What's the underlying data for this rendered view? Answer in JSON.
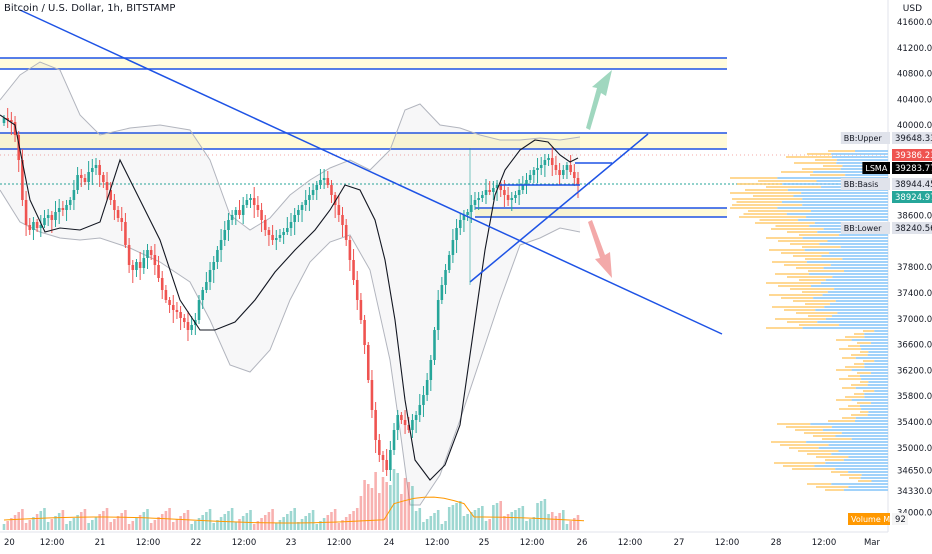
{
  "header": {
    "title": "Bitcoin / U.S. Dollar, 1h, BITSTAMP",
    "currency": "USD"
  },
  "chart_data": {
    "type": "candlestick",
    "symbol": "Bitcoin / U.S. Dollar",
    "interval": "1h",
    "exchange": "BITSTAMP",
    "y_ticks": [
      41600,
      41200,
      40800,
      40400,
      40000,
      39648.33,
      39386.23,
      39283.77,
      38944.45,
      38924.97,
      38600,
      38240.56,
      37800,
      37400,
      37000,
      36600,
      36200,
      35800,
      35400,
      35000,
      34650,
      34330,
      34000
    ],
    "y_tick_labels": [
      "41600.00",
      "41200.00",
      "40800.00",
      "40400.00",
      "40000.00",
      "",
      "",
      "",
      "",
      "",
      "38600.00",
      "",
      "37800.00",
      "37400.00",
      "37000.00",
      "36600.00",
      "36200.00",
      "35800.00",
      "35400.00",
      "35000.00",
      "34650.00",
      "34330.00",
      "34000.00"
    ],
    "x_tick_labels": [
      "20",
      "12:00",
      "21",
      "12:00",
      "22",
      "12:00",
      "23",
      "12:00",
      "24",
      "12:00",
      "25",
      "12:00",
      "26",
      "12:00",
      "27",
      "12:00",
      "28",
      "12:00",
      "Mar"
    ],
    "price_tags": [
      {
        "label": "BB:Upper",
        "value": "39648.33",
        "color": "#e0e3eb",
        "text_color": "#131722"
      },
      {
        "label": "",
        "value": "39386.23",
        "color": "#ef5350",
        "text_color": "#ffffff"
      },
      {
        "label": "LSMA",
        "value": "39283.77",
        "color": "#000000",
        "text_color": "#ffffff"
      },
      {
        "label": "BB:Basis",
        "value": "38944.45",
        "color": "#e0e3eb",
        "text_color": "#131722"
      },
      {
        "label": "",
        "value": "38924.97",
        "color": "#26a69a",
        "text_color": "#ffffff"
      },
      {
        "label": "BB:Lower",
        "value": "38240.56",
        "color": "#e0e3eb",
        "text_color": "#131722"
      }
    ],
    "volume_tag": {
      "label": "Volume MA",
      "value": "92"
    },
    "colors": {
      "up": "#26a69a",
      "down": "#ef5350",
      "trend_line": "#1e53e5",
      "zone_fill": "#fff59d",
      "bb_band": "#b2b5be",
      "lsma": "#131722",
      "volume_ma": "#ff9800",
      "arrow_up": "#8fd0b4",
      "arrow_down": "#f19a9a",
      "profile_yellow": "#ffd180",
      "profile_blue": "#90caf9"
    }
  }
}
